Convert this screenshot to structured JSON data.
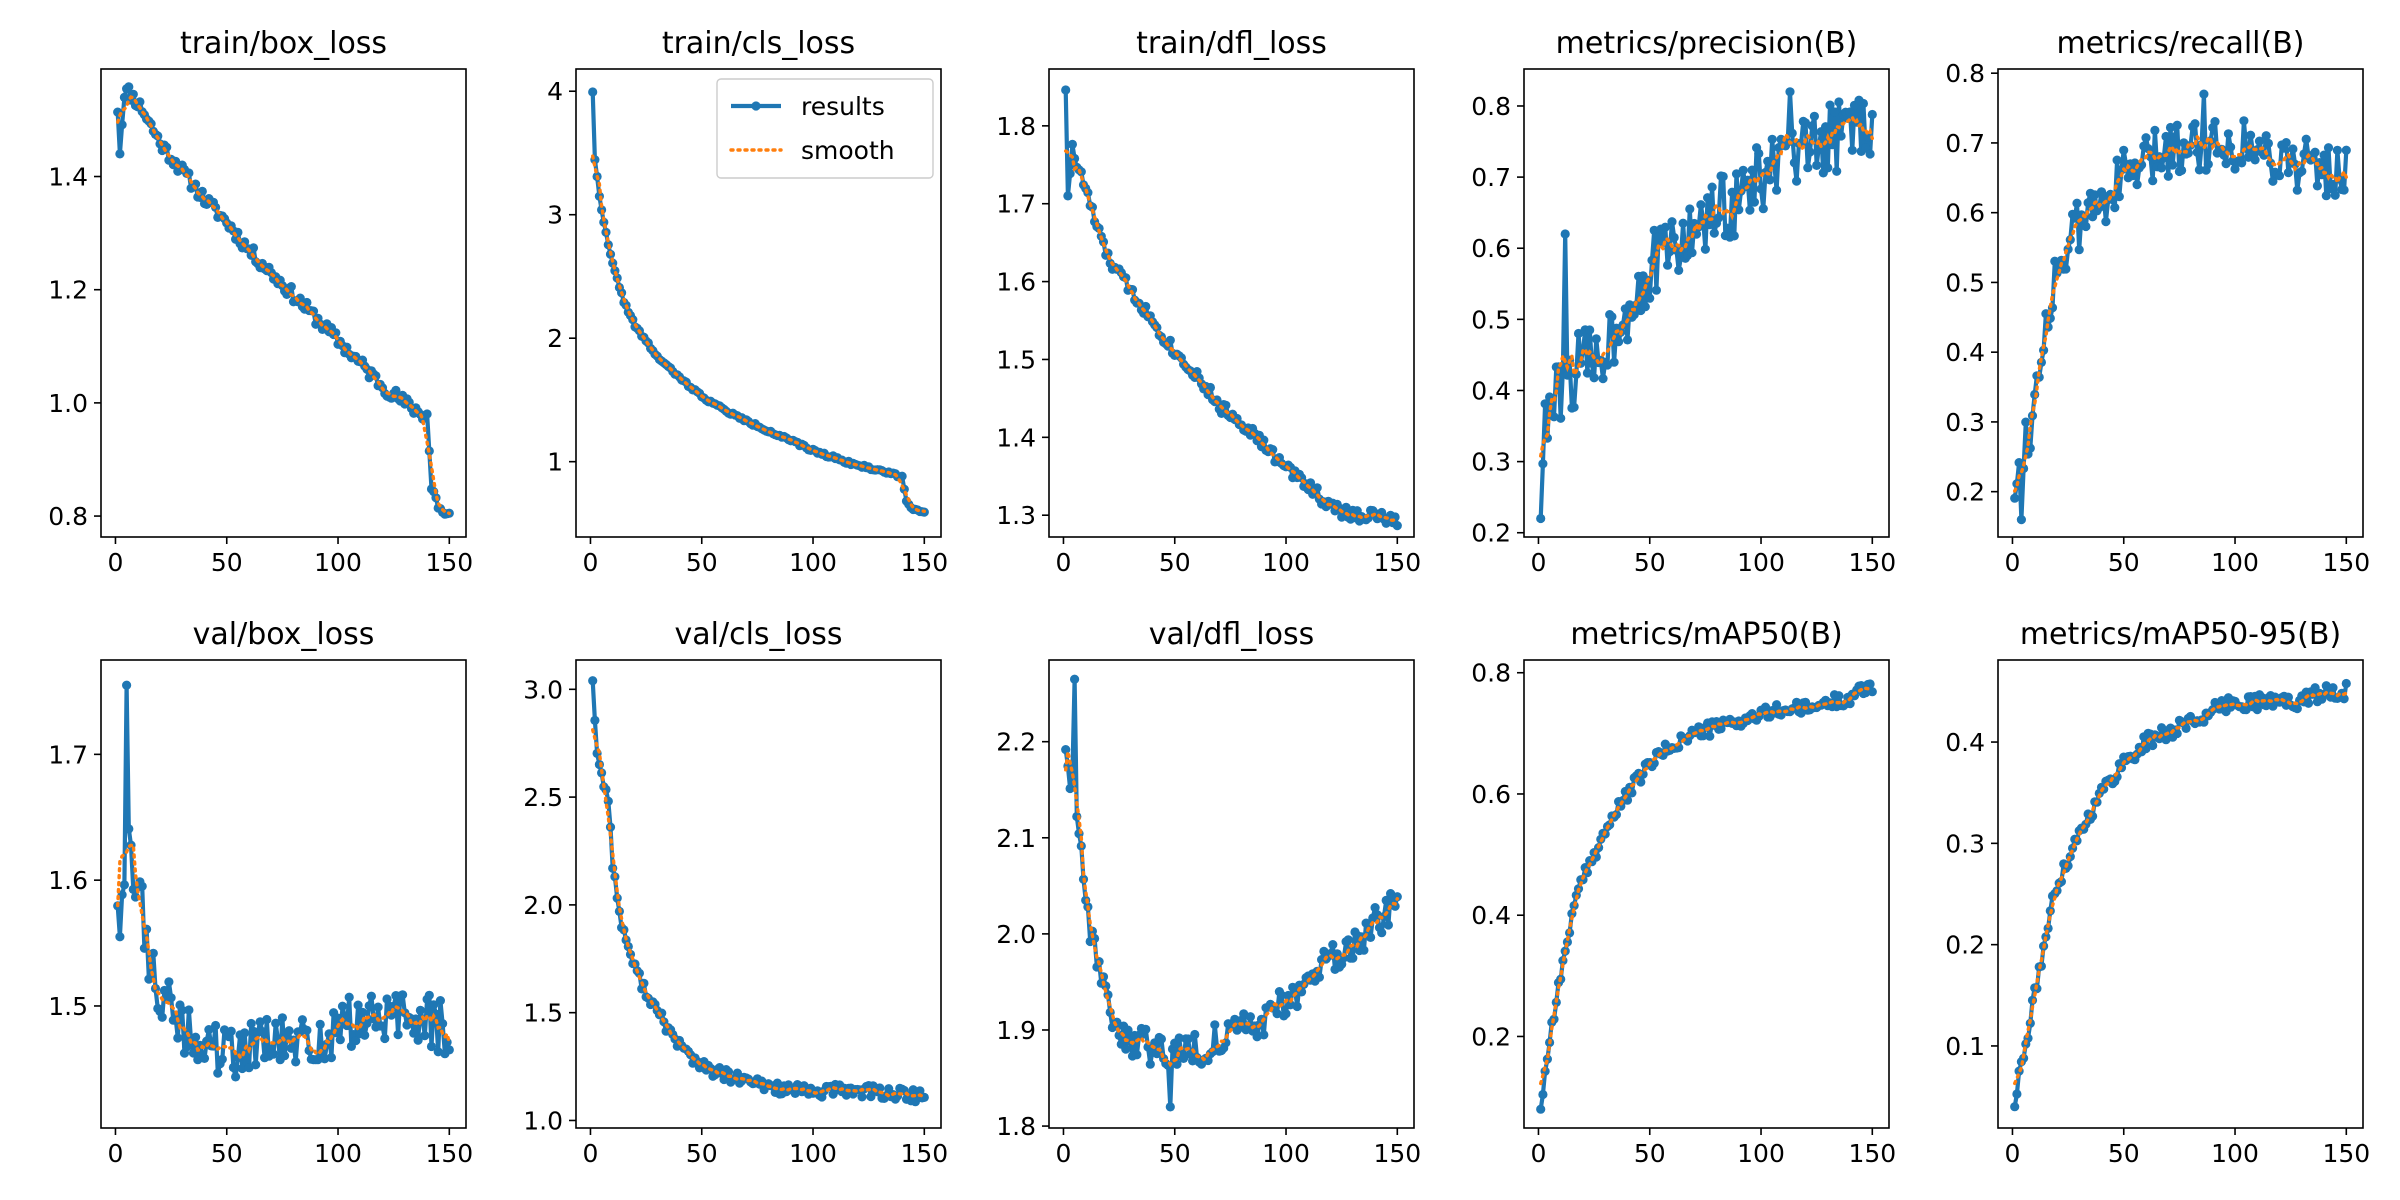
{
  "colors": {
    "results": "#1f77b4",
    "smooth": "#ff7f0e",
    "axis": "#000000"
  },
  "legend": {
    "results_label": "results",
    "smooth_label": "smooth",
    "location": "top-right of second panel"
  },
  "chart_data": [
    {
      "type": "line",
      "title": "train/box_loss",
      "x_range": [
        1,
        150
      ],
      "xlim": [
        -6.5,
        157.5
      ],
      "ylim": [
        0.763,
        1.59
      ],
      "xticks": [
        0,
        50,
        100,
        150
      ],
      "yticks": [
        {
          "v": 0.8,
          "t": "0.8"
        },
        {
          "v": 1.0,
          "t": "1.0"
        },
        {
          "v": 1.2,
          "t": "1.2"
        },
        {
          "v": 1.4,
          "t": "1.4"
        }
      ],
      "kp": [
        [
          1,
          1.52
        ],
        [
          2,
          1.44
        ],
        [
          4,
          1.55
        ],
        [
          6,
          1.55
        ],
        [
          8,
          1.54
        ],
        [
          12,
          1.52
        ],
        [
          20,
          1.46
        ],
        [
          30,
          1.41
        ],
        [
          40,
          1.36
        ],
        [
          50,
          1.32
        ],
        [
          60,
          1.27
        ],
        [
          70,
          1.23
        ],
        [
          80,
          1.19
        ],
        [
          90,
          1.15
        ],
        [
          100,
          1.11
        ],
        [
          110,
          1.07
        ],
        [
          120,
          1.03
        ],
        [
          130,
          1.0
        ],
        [
          138,
          0.98
        ],
        [
          140,
          0.98
        ],
        [
          142,
          0.85
        ],
        [
          145,
          0.82
        ],
        [
          148,
          0.8
        ],
        [
          150,
          0.8
        ]
      ],
      "noise": 0.012,
      "seed": 11,
      "spikes": [
        [
          2,
          1.44
        ]
      ],
      "legend": false
    },
    {
      "type": "line",
      "title": "train/cls_loss",
      "x_range": [
        1,
        150
      ],
      "xlim": [
        -6.5,
        157.5
      ],
      "ylim": [
        0.39,
        4.18
      ],
      "xticks": [
        0,
        50,
        100,
        150
      ],
      "yticks": [
        {
          "v": 1,
          "t": "1"
        },
        {
          "v": 2,
          "t": "2"
        },
        {
          "v": 3,
          "t": "3"
        },
        {
          "v": 4,
          "t": "4"
        }
      ],
      "kp": [
        [
          1,
          4.0
        ],
        [
          2,
          3.45
        ],
        [
          4,
          3.15
        ],
        [
          6,
          2.95
        ],
        [
          8,
          2.75
        ],
        [
          10,
          2.6
        ],
        [
          15,
          2.3
        ],
        [
          20,
          2.1
        ],
        [
          30,
          1.85
        ],
        [
          40,
          1.68
        ],
        [
          50,
          1.53
        ],
        [
          60,
          1.42
        ],
        [
          70,
          1.33
        ],
        [
          80,
          1.25
        ],
        [
          90,
          1.17
        ],
        [
          100,
          1.09
        ],
        [
          110,
          1.03
        ],
        [
          120,
          0.97
        ],
        [
          130,
          0.93
        ],
        [
          138,
          0.89
        ],
        [
          140,
          0.88
        ],
        [
          142,
          0.68
        ],
        [
          145,
          0.62
        ],
        [
          150,
          0.58
        ]
      ],
      "noise": 0.012,
      "seed": 22,
      "spikes": [],
      "legend": true
    },
    {
      "type": "line",
      "title": "train/dfl_loss",
      "x_range": [
        1,
        150
      ],
      "xlim": [
        -6.5,
        157.5
      ],
      "ylim": [
        1.272,
        1.873
      ],
      "xticks": [
        0,
        50,
        100,
        150
      ],
      "yticks": [
        {
          "v": 1.3,
          "t": "1.3"
        },
        {
          "v": 1.4,
          "t": "1.4"
        },
        {
          "v": 1.5,
          "t": "1.5"
        },
        {
          "v": 1.6,
          "t": "1.6"
        },
        {
          "v": 1.7,
          "t": "1.7"
        },
        {
          "v": 1.8,
          "t": "1.8"
        }
      ],
      "kp": [
        [
          1,
          1.85
        ],
        [
          2,
          1.71
        ],
        [
          4,
          1.77
        ],
        [
          6,
          1.75
        ],
        [
          10,
          1.72
        ],
        [
          15,
          1.67
        ],
        [
          20,
          1.63
        ],
        [
          30,
          1.59
        ],
        [
          40,
          1.55
        ],
        [
          50,
          1.51
        ],
        [
          60,
          1.48
        ],
        [
          70,
          1.44
        ],
        [
          80,
          1.42
        ],
        [
          90,
          1.39
        ],
        [
          100,
          1.36
        ],
        [
          110,
          1.34
        ],
        [
          120,
          1.31
        ],
        [
          130,
          1.3
        ],
        [
          140,
          1.3
        ],
        [
          150,
          1.29
        ]
      ],
      "noise": 0.008,
      "seed": 33,
      "spikes": [
        [
          2,
          1.71
        ]
      ],
      "legend": false
    },
    {
      "type": "line",
      "title": "metrics/precision(B)",
      "x_range": [
        1,
        150
      ],
      "xlim": [
        -6.5,
        157.5
      ],
      "ylim": [
        0.194,
        0.852
      ],
      "xticks": [
        0,
        50,
        100,
        150
      ],
      "yticks": [
        {
          "v": 0.2,
          "t": "0.2"
        },
        {
          "v": 0.3,
          "t": "0.3"
        },
        {
          "v": 0.4,
          "t": "0.4"
        },
        {
          "v": 0.5,
          "t": "0.5"
        },
        {
          "v": 0.6,
          "t": "0.6"
        },
        {
          "v": 0.7,
          "t": "0.7"
        },
        {
          "v": 0.8,
          "t": "0.8"
        }
      ],
      "kp": [
        [
          1,
          0.22
        ],
        [
          2,
          0.32
        ],
        [
          5,
          0.37
        ],
        [
          10,
          0.4
        ],
        [
          15,
          0.42
        ],
        [
          20,
          0.44
        ],
        [
          30,
          0.46
        ],
        [
          40,
          0.52
        ],
        [
          50,
          0.57
        ],
        [
          60,
          0.6
        ],
        [
          70,
          0.62
        ],
        [
          80,
          0.65
        ],
        [
          90,
          0.67
        ],
        [
          100,
          0.7
        ],
        [
          110,
          0.72
        ],
        [
          120,
          0.73
        ],
        [
          130,
          0.75
        ],
        [
          140,
          0.77
        ],
        [
          150,
          0.78
        ]
      ],
      "noise": 0.05,
      "seed": 44,
      "spikes": [
        [
          1,
          0.22
        ],
        [
          12,
          0.62
        ],
        [
          113,
          0.82
        ]
      ],
      "legend": false
    },
    {
      "type": "line",
      "title": "metrics/recall(B)",
      "x_range": [
        1,
        150
      ],
      "xlim": [
        -6.5,
        157.5
      ],
      "ylim": [
        0.135,
        0.806
      ],
      "xticks": [
        0,
        50,
        100,
        150
      ],
      "yticks": [
        {
          "v": 0.2,
          "t": "0.2"
        },
        {
          "v": 0.3,
          "t": "0.3"
        },
        {
          "v": 0.4,
          "t": "0.4"
        },
        {
          "v": 0.5,
          "t": "0.5"
        },
        {
          "v": 0.6,
          "t": "0.6"
        },
        {
          "v": 0.7,
          "t": "0.7"
        },
        {
          "v": 0.8,
          "t": "0.8"
        }
      ],
      "kp": [
        [
          1,
          0.21
        ],
        [
          2,
          0.23
        ],
        [
          5,
          0.27
        ],
        [
          10,
          0.32
        ],
        [
          15,
          0.45
        ],
        [
          20,
          0.52
        ],
        [
          30,
          0.58
        ],
        [
          40,
          0.62
        ],
        [
          50,
          0.65
        ],
        [
          60,
          0.67
        ],
        [
          70,
          0.69
        ],
        [
          80,
          0.7
        ],
        [
          90,
          0.7
        ],
        [
          100,
          0.7
        ],
        [
          110,
          0.69
        ],
        [
          120,
          0.68
        ],
        [
          130,
          0.67
        ],
        [
          140,
          0.66
        ],
        [
          150,
          0.66
        ]
      ],
      "noise": 0.04,
      "seed": 55,
      "spikes": [
        [
          4,
          0.16
        ],
        [
          86,
          0.77
        ]
      ],
      "legend": false
    },
    {
      "type": "line",
      "title": "val/box_loss",
      "x_range": [
        1,
        150
      ],
      "xlim": [
        -6.5,
        157.5
      ],
      "ylim": [
        1.403,
        1.775
      ],
      "xticks": [
        0,
        50,
        100,
        150
      ],
      "yticks": [
        {
          "v": 1.5,
          "t": "1.5"
        },
        {
          "v": 1.6,
          "t": "1.6"
        },
        {
          "v": 1.7,
          "t": "1.7"
        }
      ],
      "kp": [
        [
          1,
          1.59
        ],
        [
          3,
          1.61
        ],
        [
          6,
          1.62
        ],
        [
          10,
          1.6
        ],
        [
          15,
          1.54
        ],
        [
          20,
          1.51
        ],
        [
          30,
          1.48
        ],
        [
          40,
          1.47
        ],
        [
          50,
          1.46
        ],
        [
          60,
          1.47
        ],
        [
          70,
          1.47
        ],
        [
          80,
          1.47
        ],
        [
          90,
          1.47
        ],
        [
          100,
          1.48
        ],
        [
          110,
          1.49
        ],
        [
          120,
          1.49
        ],
        [
          130,
          1.49
        ],
        [
          140,
          1.49
        ],
        [
          150,
          1.48
        ]
      ],
      "noise": 0.022,
      "seed": 66,
      "spikes": [
        [
          5,
          1.755
        ],
        [
          2,
          1.555
        ]
      ],
      "legend": false
    },
    {
      "type": "line",
      "title": "val/cls_loss",
      "x_range": [
        1,
        150
      ],
      "xlim": [
        -6.5,
        157.5
      ],
      "ylim": [
        0.965,
        3.136
      ],
      "xticks": [
        0,
        50,
        100,
        150
      ],
      "yticks": [
        {
          "v": 1.0,
          "t": "1.0"
        },
        {
          "v": 1.5,
          "t": "1.5"
        },
        {
          "v": 2.0,
          "t": "2.0"
        },
        {
          "v": 2.5,
          "t": "2.5"
        },
        {
          "v": 3.0,
          "t": "3.0"
        }
      ],
      "kp": [
        [
          1,
          3.04
        ],
        [
          3,
          2.7
        ],
        [
          5,
          2.6
        ],
        [
          8,
          2.5
        ],
        [
          10,
          2.2
        ],
        [
          13,
          1.95
        ],
        [
          20,
          1.7
        ],
        [
          30,
          1.5
        ],
        [
          40,
          1.35
        ],
        [
          50,
          1.25
        ],
        [
          60,
          1.21
        ],
        [
          70,
          1.18
        ],
        [
          80,
          1.16
        ],
        [
          90,
          1.14
        ],
        [
          100,
          1.13
        ],
        [
          110,
          1.14
        ],
        [
          120,
          1.14
        ],
        [
          130,
          1.13
        ],
        [
          140,
          1.12
        ],
        [
          150,
          1.11
        ]
      ],
      "noise": 0.03,
      "seed": 77,
      "spikes": [
        [
          1,
          3.04
        ]
      ],
      "legend": false
    },
    {
      "type": "line",
      "title": "val/dfl_loss",
      "x_range": [
        1,
        150
      ],
      "xlim": [
        -6.5,
        157.5
      ],
      "ylim": [
        1.798,
        2.285
      ],
      "xticks": [
        0,
        50,
        100,
        150
      ],
      "yticks": [
        {
          "v": 1.8,
          "t": "1.8"
        },
        {
          "v": 1.9,
          "t": "1.9"
        },
        {
          "v": 2.0,
          "t": "2.0"
        },
        {
          "v": 2.1,
          "t": "2.1"
        },
        {
          "v": 2.2,
          "t": "2.2"
        }
      ],
      "kp": [
        [
          1,
          2.2
        ],
        [
          4,
          2.15
        ],
        [
          8,
          2.1
        ],
        [
          10,
          2.03
        ],
        [
          15,
          1.98
        ],
        [
          20,
          1.93
        ],
        [
          25,
          1.9
        ],
        [
          30,
          1.89
        ],
        [
          40,
          1.88
        ],
        [
          50,
          1.88
        ],
        [
          60,
          1.88
        ],
        [
          70,
          1.89
        ],
        [
          80,
          1.9
        ],
        [
          90,
          1.91
        ],
        [
          100,
          1.93
        ],
        [
          110,
          1.95
        ],
        [
          120,
          1.97
        ],
        [
          130,
          1.99
        ],
        [
          140,
          2.01
        ],
        [
          150,
          2.03
        ]
      ],
      "noise": 0.018,
      "seed": 88,
      "spikes": [
        [
          5,
          2.265
        ],
        [
          48,
          1.82
        ]
      ],
      "legend": false
    },
    {
      "type": "line",
      "title": "metrics/mAP50(B)",
      "x_range": [
        1,
        150
      ],
      "xlim": [
        -6.5,
        157.5
      ],
      "ylim": [
        0.049,
        0.821
      ],
      "xticks": [
        0,
        50,
        100,
        150
      ],
      "yticks": [
        {
          "v": 0.2,
          "t": "0.2"
        },
        {
          "v": 0.4,
          "t": "0.4"
        },
        {
          "v": 0.6,
          "t": "0.6"
        },
        {
          "v": 0.8,
          "t": "0.8"
        }
      ],
      "kp": [
        [
          1,
          0.08
        ],
        [
          3,
          0.14
        ],
        [
          6,
          0.22
        ],
        [
          10,
          0.3
        ],
        [
          15,
          0.4
        ],
        [
          20,
          0.46
        ],
        [
          30,
          0.54
        ],
        [
          40,
          0.6
        ],
        [
          50,
          0.65
        ],
        [
          60,
          0.68
        ],
        [
          70,
          0.7
        ],
        [
          80,
          0.71
        ],
        [
          90,
          0.72
        ],
        [
          100,
          0.73
        ],
        [
          110,
          0.74
        ],
        [
          120,
          0.74
        ],
        [
          130,
          0.75
        ],
        [
          140,
          0.76
        ],
        [
          150,
          0.78
        ]
      ],
      "noise": 0.012,
      "seed": 99,
      "spikes": [
        [
          1,
          0.08
        ]
      ],
      "legend": false
    },
    {
      "type": "line",
      "title": "metrics/mAP50-95(B)",
      "x_range": [
        1,
        150
      ],
      "xlim": [
        -6.5,
        157.5
      ],
      "ylim": [
        0.019,
        0.481
      ],
      "xticks": [
        0,
        50,
        100,
        150
      ],
      "yticks": [
        {
          "v": 0.1,
          "t": "0.1"
        },
        {
          "v": 0.2,
          "t": "0.2"
        },
        {
          "v": 0.3,
          "t": "0.3"
        },
        {
          "v": 0.4,
          "t": "0.4"
        }
      ],
      "kp": [
        [
          1,
          0.04
        ],
        [
          3,
          0.07
        ],
        [
          6,
          0.1
        ],
        [
          10,
          0.15
        ],
        [
          15,
          0.21
        ],
        [
          20,
          0.26
        ],
        [
          30,
          0.31
        ],
        [
          40,
          0.35
        ],
        [
          50,
          0.38
        ],
        [
          60,
          0.4
        ],
        [
          70,
          0.41
        ],
        [
          80,
          0.42
        ],
        [
          90,
          0.43
        ],
        [
          100,
          0.44
        ],
        [
          110,
          0.44
        ],
        [
          120,
          0.44
        ],
        [
          130,
          0.44
        ],
        [
          140,
          0.45
        ],
        [
          150,
          0.45
        ]
      ],
      "noise": 0.008,
      "seed": 111,
      "spikes": [
        [
          1,
          0.04
        ]
      ],
      "legend": false
    }
  ]
}
